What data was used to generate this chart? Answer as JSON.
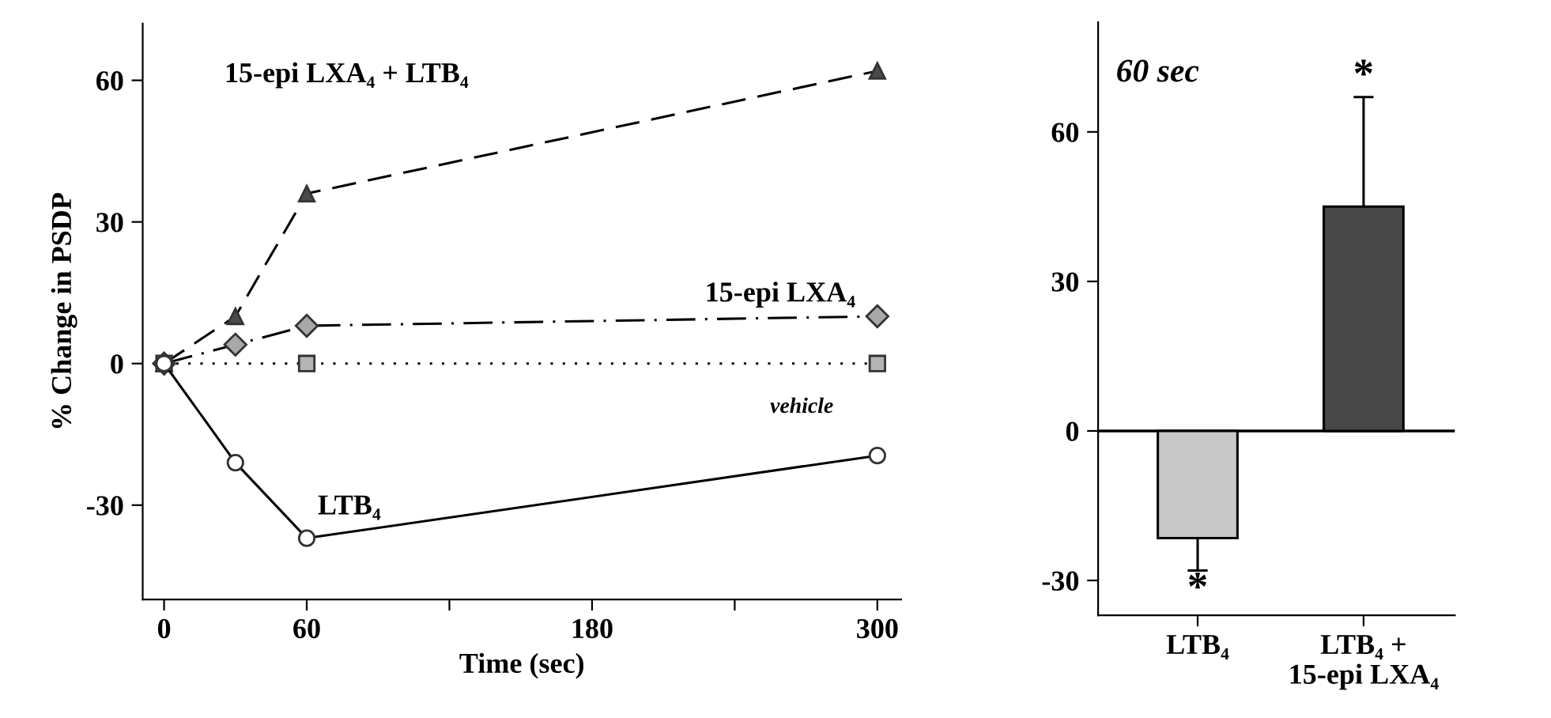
{
  "chart_data": [
    {
      "type": "line",
      "xlabel": "Time (sec)",
      "ylabel": "% Change in PSDP",
      "xlim": [
        -9,
        310
      ],
      "xticks": [
        0,
        60,
        {
          "value": 120,
          "label": null
        },
        180,
        {
          "value": 240,
          "label": null
        },
        300
      ],
      "ylim": [
        -50,
        72
      ],
      "yticks": [
        -30,
        0,
        30,
        60
      ],
      "grid": false,
      "series": [
        {
          "name": "15-epi LXA₄ + LTB₄",
          "color": "#4a4a4a",
          "x": [
            0,
            30,
            60,
            300
          ],
          "values": [
            0,
            10,
            36,
            62
          ],
          "marker": "triangle",
          "line_style": "dashed"
        },
        {
          "name": "15-epi LXA₄",
          "color": "#a8a8a8",
          "x": [
            0,
            30,
            60,
            300
          ],
          "values": [
            0,
            4,
            8,
            10
          ],
          "marker": "diamond",
          "line_style": "dashdot"
        },
        {
          "name": "vehicle",
          "color": "#b4b4b4",
          "x": [
            0,
            60,
            300
          ],
          "values": [
            0,
            0,
            0
          ],
          "marker": "square",
          "line_style": "dotted"
        },
        {
          "name": "LTB₄",
          "color": "#ffffff",
          "x": [
            0,
            30,
            60,
            300
          ],
          "values": [
            0,
            -21,
            -37,
            -19.5
          ],
          "marker": "circle",
          "line_style": "solid"
        }
      ]
    },
    {
      "type": "bar",
      "annotations": [
        "60 sec",
        "*",
        "*"
      ],
      "categories": [
        "LTB₄",
        "LTB₄ +\n15-epi LXA₄"
      ],
      "values": [
        -21.5,
        45
      ],
      "colors": [
        "#c8c8c8",
        "#484848"
      ],
      "errors": [
        [
          -28,
          -21.5
        ],
        [
          45,
          67
        ]
      ],
      "ylim": [
        -37,
        82
      ],
      "yticks": [
        -30,
        0,
        30,
        60
      ],
      "grid": false,
      "ref_lines": [
        {
          "axis": "y",
          "value": 0
        }
      ]
    }
  ]
}
